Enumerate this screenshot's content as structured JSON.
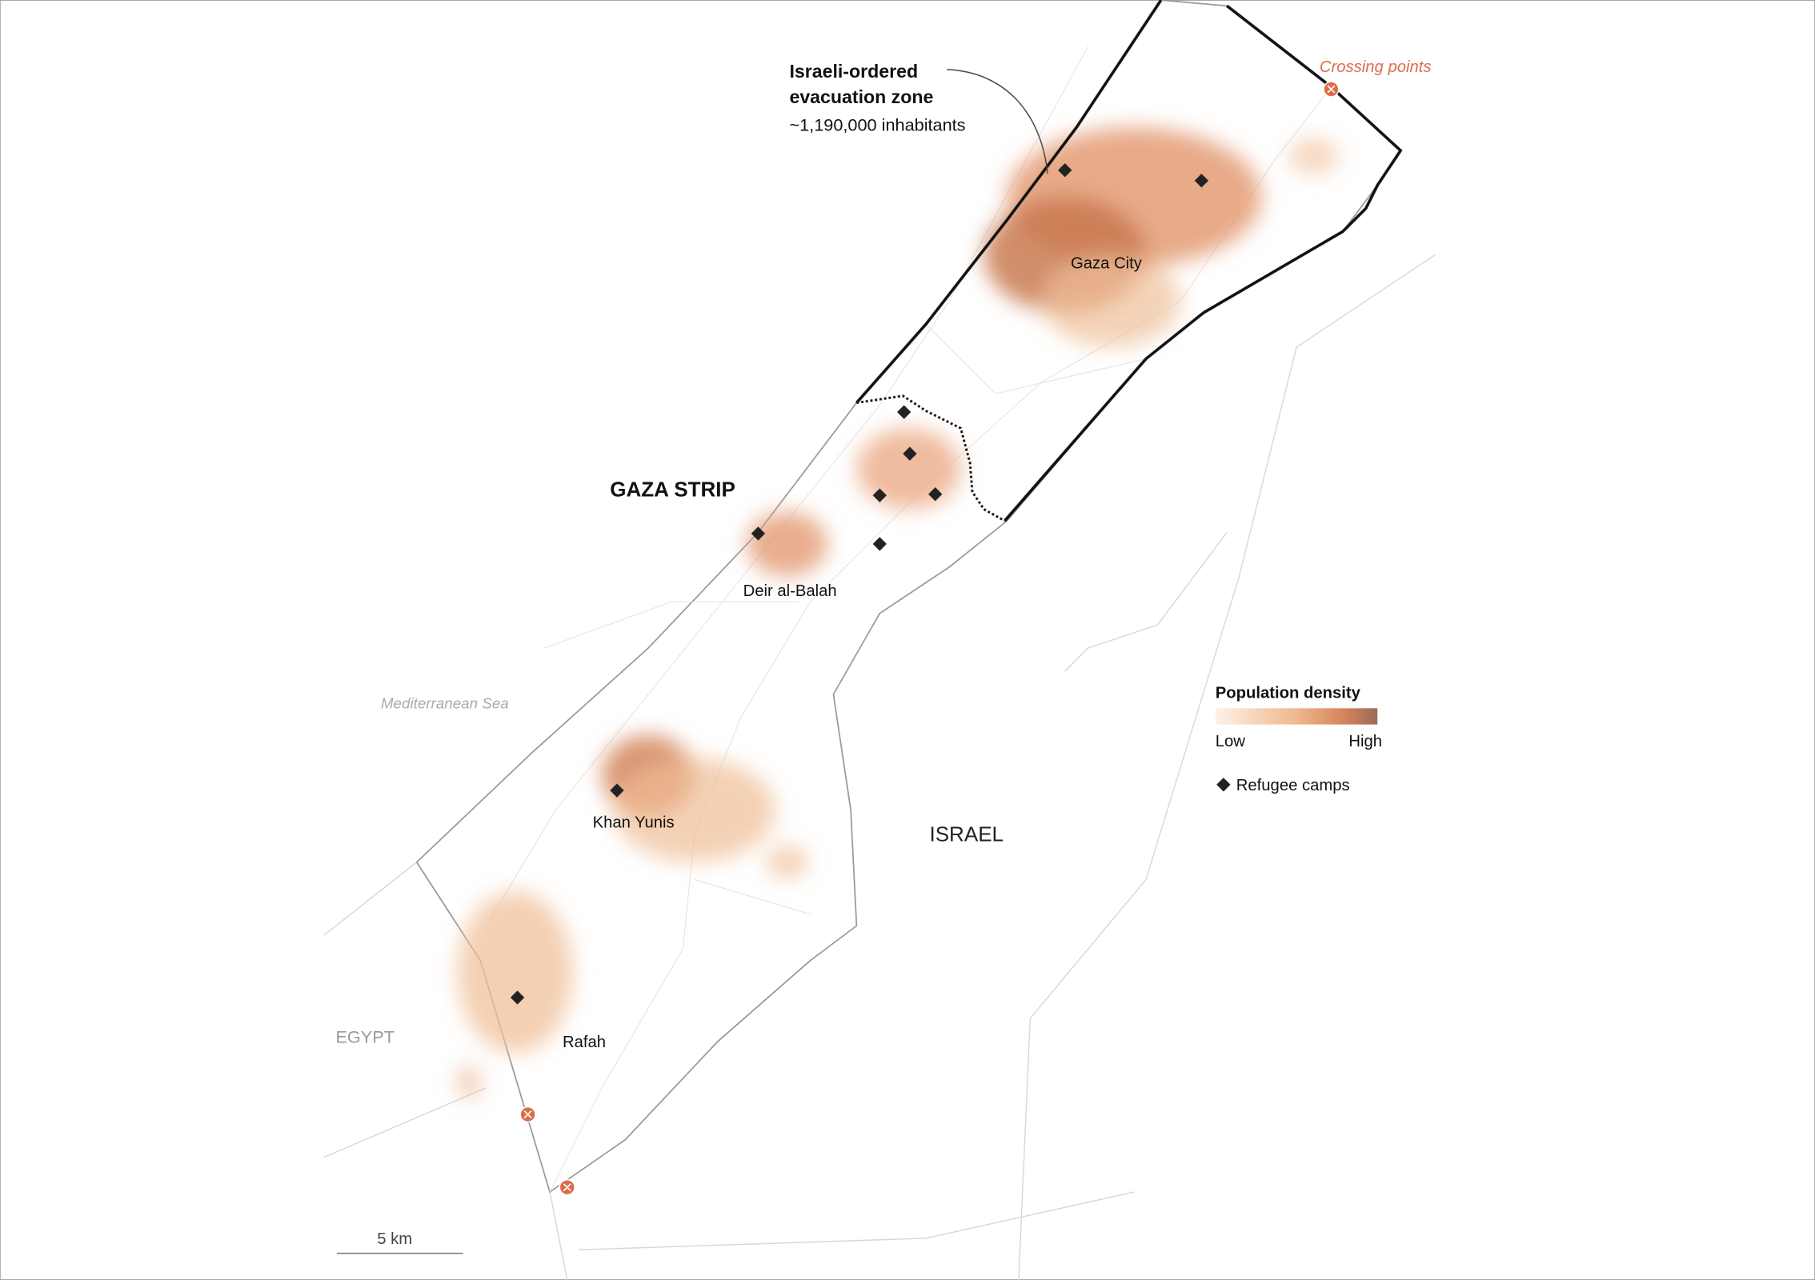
{
  "annotation": {
    "title_lines": [
      "Israeli-ordered",
      "evacuation zone"
    ],
    "subtitle": "~1,190,000 inhabitants"
  },
  "labels": {
    "crossing_points": "Crossing points",
    "gaza_city": "Gaza City",
    "gaza_strip": "GAZA STRIP",
    "deir_al_balah": "Deir al-Balah",
    "sea": "Mediterranean Sea",
    "khan_yunis": "Khan Yunis",
    "rafah": "Rafah",
    "israel": "ISRAEL",
    "egypt": "EGYPT"
  },
  "legend": {
    "title": "Population density",
    "low": "Low",
    "high": "High",
    "camps": "Refugee camps"
  },
  "scale_bar": {
    "label": "5 km"
  }
}
